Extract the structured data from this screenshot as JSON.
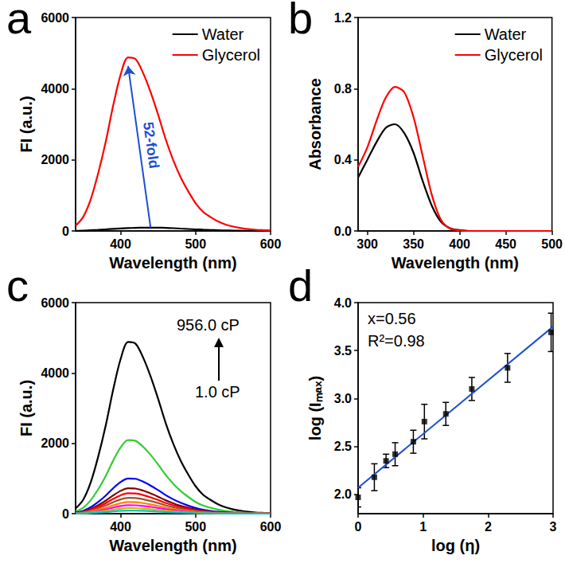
{
  "chart_data": [
    {
      "type": "line",
      "title": "a",
      "x_label": "Wavelength (nm)",
      "y_label": "FI (a.u.)",
      "x": [
        340,
        350,
        360,
        370,
        380,
        390,
        400,
        410,
        420,
        430,
        440,
        450,
        460,
        470,
        480,
        490,
        500,
        510,
        520,
        530,
        540,
        550,
        560,
        570,
        580,
        590,
        600
      ],
      "series": [
        {
          "name": "Water",
          "color": "#000000",
          "values": [
            5,
            10,
            20,
            32,
            45,
            58,
            70,
            80,
            88,
            93,
            95,
            93,
            87,
            78,
            67,
            56,
            45,
            35,
            27,
            20,
            14,
            10,
            7,
            5,
            3,
            2,
            1
          ]
        },
        {
          "name": "Glycerol",
          "color": "#ff0000",
          "values": [
            146,
            390,
            878,
            1610,
            2489,
            3514,
            4392,
            4880,
            4831,
            4441,
            3904,
            3270,
            2586,
            2001,
            1513,
            1122,
            781,
            537,
            390,
            268,
            181,
            122,
            83,
            54,
            34,
            24,
            15
          ]
        }
      ],
      "xlim": [
        340,
        600
      ],
      "xticks": [
        400,
        500,
        600
      ],
      "ylim": [
        0,
        6000
      ],
      "yticks": [
        0,
        2000,
        4000,
        6000
      ],
      "grid": false,
      "legend": "upper right",
      "annotations": [
        {
          "text": "52-fold",
          "color": "#1f4fd0"
        }
      ]
    },
    {
      "type": "line",
      "title": "b",
      "x_label": "Wavelength (nm)",
      "y_label": "Absorbance",
      "x": [
        290,
        300,
        310,
        320,
        330,
        340,
        350,
        360,
        370,
        380,
        390,
        400,
        410,
        420,
        430,
        440,
        450,
        460,
        470,
        480,
        490,
        500
      ],
      "series": [
        {
          "name": "Water",
          "color": "#000000",
          "values": [
            0.3,
            0.4,
            0.5,
            0.58,
            0.6,
            0.55,
            0.44,
            0.28,
            0.14,
            0.05,
            0.015,
            0.005,
            0,
            0,
            0,
            0,
            0,
            0,
            0,
            0,
            0,
            0
          ]
        },
        {
          "name": "Glycerol",
          "color": "#ff0000",
          "values": [
            0.36,
            0.47,
            0.62,
            0.75,
            0.81,
            0.78,
            0.64,
            0.42,
            0.2,
            0.06,
            0.012,
            0.003,
            0,
            0,
            0,
            0,
            0,
            0,
            0,
            0,
            0,
            0
          ]
        }
      ],
      "xlim": [
        290,
        500
      ],
      "xticks": [
        300,
        350,
        400,
        450,
        500
      ],
      "ylim": [
        0,
        1.2
      ],
      "yticks": [
        {
          "value": 0,
          "label": "0.0"
        },
        0.4,
        0.8,
        1.2
      ],
      "grid": false,
      "legend": "upper right"
    },
    {
      "type": "line",
      "title": "c",
      "x_label": "Wavelength (nm)",
      "y_label": "FI (a.u.)",
      "x": [
        340,
        350,
        360,
        370,
        380,
        390,
        400,
        410,
        420,
        430,
        440,
        450,
        460,
        470,
        480,
        490,
        500,
        510,
        520,
        530,
        540,
        550,
        560,
        570,
        580,
        590,
        600
      ],
      "series": [
        {
          "color": "#000000",
          "values": [
            146,
            390,
            878,
            1610,
            2489,
            3514,
            4392,
            4880,
            4831,
            4441,
            3904,
            3270,
            2586,
            2001,
            1513,
            1122,
            781,
            537,
            390,
            268,
            181,
            122,
            83,
            54,
            34,
            24,
            15
          ]
        },
        {
          "color": "#33cc33",
          "values": [
            63,
            167,
            376,
            690,
            1066,
            1505,
            1881,
            2090,
            2069,
            1902,
            1672,
            1400,
            1108,
            857,
            648,
            481,
            334,
            230,
            167,
            115,
            77,
            52,
            36,
            23,
            15,
            10,
            6
          ]
        },
        {
          "color": "#0000ff",
          "values": [
            30,
            80,
            180,
            330,
            510,
            720,
            900,
            1000,
            990,
            910,
            800,
            670,
            530,
            410,
            310,
            230,
            160,
            110,
            80,
            55,
            37,
            25,
            17,
            11,
            7,
            5,
            3
          ]
        },
        {
          "color": "#800000",
          "values": [
            22,
            58,
            130,
            238,
            367,
            518,
            648,
            720,
            713,
            655,
            576,
            482,
            382,
            295,
            223,
            166,
            115,
            79,
            58,
            40,
            27,
            18,
            12,
            8,
            5,
            4,
            2
          ]
        },
        {
          "color": "#ff0000",
          "values": [
            17,
            46,
            104,
            191,
            296,
            418,
            522,
            580,
            574,
            528,
            464,
            389,
            307,
            238,
            180,
            133,
            93,
            64,
            46,
            32,
            21,
            15,
            10,
            6,
            4,
            3,
            2
          ]
        },
        {
          "color": "#a0522d",
          "values": [
            14,
            36,
            81,
            149,
            230,
            324,
            405,
            450,
            446,
            410,
            360,
            302,
            239,
            185,
            140,
            104,
            72,
            50,
            36,
            25,
            17,
            11,
            8,
            5,
            3,
            2,
            1
          ]
        },
        {
          "color": "#ff8000",
          "values": [
            10,
            26,
            59,
            109,
            168,
            238,
            297,
            330,
            327,
            300,
            264,
            221,
            175,
            135,
            102,
            76,
            53,
            36,
            26,
            18,
            12,
            8,
            6,
            4,
            2,
            2,
            1
          ]
        },
        {
          "color": "#ff00ff",
          "values": [
            7,
            19,
            43,
            79,
            122,
            173,
            216,
            240,
            238,
            218,
            192,
            161,
            127,
            98,
            74,
            55,
            38,
            26,
            19,
            13,
            9,
            6,
            4,
            3,
            2,
            1,
            1
          ]
        },
        {
          "color": "#c0c000",
          "values": [
            5,
            13,
            29,
            53,
            82,
            115,
            144,
            160,
            158,
            146,
            128,
            107,
            85,
            66,
            50,
            37,
            26,
            18,
            13,
            9,
            6,
            4,
            3,
            2,
            1,
            1,
            0
          ]
        },
        {
          "color": "#00c0c0",
          "values": [
            3,
            7,
            16,
            30,
            46,
            65,
            81,
            90,
            89,
            82,
            72,
            60,
            48,
            37,
            28,
            21,
            14,
            10,
            7,
            5,
            3,
            2,
            2,
            1,
            1,
            0,
            0
          ]
        }
      ],
      "xlim": [
        340,
        600
      ],
      "xticks": [
        400,
        500,
        600
      ],
      "ylim": [
        0,
        6000
      ],
      "yticks": [
        0,
        2000,
        4000,
        6000
      ],
      "grid": false,
      "annotations": [
        {
          "text": "956.0 cP",
          "color": "#000000"
        },
        {
          "text": "1.0 cP",
          "color": "#000000"
        }
      ]
    },
    {
      "type": "scatter",
      "title": "d",
      "x_label": "log (η)",
      "y_label": "log (Iₘₐₓ)",
      "series": [
        {
          "type": "scatter",
          "color": "#000000",
          "marker": "square",
          "x": [
            0,
            0.25,
            0.43,
            0.57,
            0.85,
            1.02,
            1.35,
            1.75,
            2.3,
            2.97
          ],
          "values": [
            1.97,
            2.18,
            2.35,
            2.42,
            2.55,
            2.76,
            2.84,
            3.1,
            3.32,
            3.69
          ],
          "errors": [
            0.1,
            0.14,
            0.07,
            0.12,
            0.12,
            0.18,
            0.12,
            0.12,
            0.15,
            0.2
          ]
        },
        {
          "type": "line",
          "color": "#1f4fd0",
          "line_style": "solid",
          "x": [
            0,
            3
          ],
          "values": [
            2.07,
            3.75
          ]
        }
      ],
      "xlim": [
        0,
        3
      ],
      "xticks": [
        0,
        1,
        2,
        3
      ],
      "ylim": [
        1.8,
        4.0
      ],
      "yticks": [
        {
          "value": 2.0,
          "label": "2.0"
        },
        2.5,
        {
          "value": 3.0,
          "label": "3.0"
        },
        3.5,
        {
          "value": 4.0,
          "label": "4.0"
        }
      ],
      "grid": false,
      "annotations": [
        {
          "text": "x=0.56",
          "color": "#000000"
        },
        {
          "text": "R²=0.98",
          "color": "#000000"
        }
      ]
    }
  ]
}
